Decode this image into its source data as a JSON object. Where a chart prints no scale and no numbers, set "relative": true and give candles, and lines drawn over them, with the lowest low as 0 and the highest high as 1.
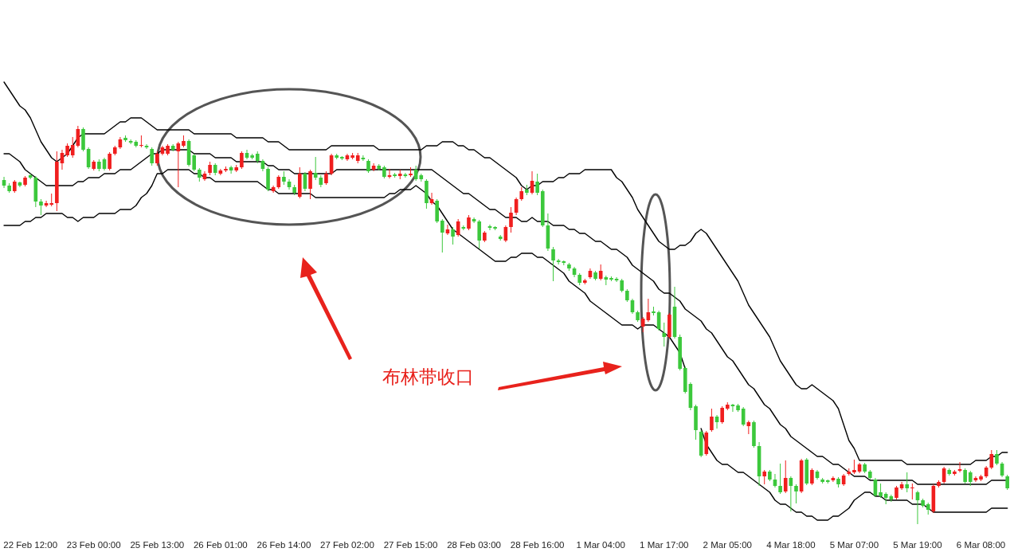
{
  "chart_data": {
    "type": "candlestick",
    "relative": true,
    "categories": [
      null,
      null,
      null,
      null,
      null,
      "22 Feb 12:00",
      null,
      null,
      null,
      null,
      null,
      null,
      null,
      null,
      null,
      null,
      null,
      "23 Feb 00:00",
      null,
      null,
      null,
      null,
      null,
      null,
      null,
      null,
      null,
      null,
      null,
      "25 Feb 13:00",
      null,
      null,
      null,
      null,
      null,
      null,
      null,
      null,
      null,
      null,
      null,
      "26 Feb 01:00",
      null,
      null,
      null,
      null,
      null,
      null,
      null,
      null,
      null,
      null,
      null,
      "26 Feb 14:00",
      null,
      null,
      null,
      null,
      null,
      null,
      null,
      null,
      null,
      null,
      null,
      "27 Feb 02:00",
      null,
      null,
      null,
      null,
      null,
      null,
      null,
      null,
      null,
      null,
      null,
      "27 Feb 15:00",
      null,
      null,
      null,
      null,
      null,
      null,
      null,
      null,
      null,
      null,
      null,
      "28 Feb 03:00",
      null,
      null,
      null,
      null,
      null,
      null,
      null,
      null,
      null,
      null,
      null,
      "28 Feb 16:00",
      null,
      null,
      null,
      null,
      null,
      null,
      null,
      null,
      null,
      null,
      null,
      "1 Mar 04:00",
      null,
      null,
      null,
      null,
      null,
      null,
      null,
      null,
      null,
      null,
      null,
      "1 Mar 17:00",
      null,
      null,
      null,
      null,
      null,
      null,
      null,
      null,
      null,
      null,
      null,
      "2 Mar 05:00",
      null,
      null,
      null,
      null,
      null,
      null,
      null,
      null,
      null,
      null,
      null,
      "4 Mar 18:00",
      null,
      null,
      null,
      null,
      null,
      null,
      null,
      null,
      null,
      null,
      null,
      "5 Mar 07:00",
      null,
      null,
      null,
      null,
      null,
      null,
      null,
      null,
      null,
      null,
      null,
      "5 Mar 19:00",
      null,
      null,
      null,
      null,
      null,
      null,
      null,
      null,
      null,
      null,
      null,
      "6 Mar 08:00",
      null,
      null,
      null,
      null,
      null
    ],
    "annotations": [
      "布林带收口"
    ],
    "ohlc": [
      [
        0.864,
        0.872,
        0.844,
        0.85
      ],
      [
        0.85,
        0.856,
        0.832,
        0.836
      ],
      [
        0.836,
        0.864,
        0.832,
        0.86
      ],
      [
        0.858,
        0.86,
        0.846,
        0.85
      ],
      [
        0.852,
        0.874,
        0.848,
        0.87
      ],
      [
        0.876,
        0.88,
        0.866,
        0.87
      ],
      [
        0.87,
        0.874,
        0.796,
        0.81
      ],
      [
        0.81,
        0.816,
        0.776,
        0.8
      ],
      [
        0.8,
        0.812,
        0.796,
        0.806
      ],
      [
        0.802,
        0.83,
        0.798,
        0.806
      ],
      [
        0.806,
        0.936,
        0.786,
        0.91
      ],
      [
        0.906,
        0.94,
        0.89,
        0.932
      ],
      [
        0.926,
        0.956,
        0.922,
        0.95
      ],
      [
        0.926,
        0.972,
        0.92,
        0.952
      ],
      [
        0.95,
        1.0,
        0.946,
        0.992
      ],
      [
        0.992,
        0.996,
        0.936,
        0.94
      ],
      [
        0.942,
        0.946,
        0.892,
        0.896
      ],
      [
        0.892,
        0.914,
        0.888,
        0.91
      ],
      [
        0.91,
        0.916,
        0.886,
        0.892
      ],
      [
        0.916,
        0.92,
        0.888,
        0.892
      ],
      [
        0.892,
        0.934,
        0.888,
        0.93
      ],
      [
        0.93,
        0.95,
        0.926,
        0.946
      ],
      [
        0.946,
        0.972,
        0.942,
        0.966
      ],
      [
        0.97,
        0.976,
        0.96,
        0.964
      ],
      [
        0.962,
        0.966,
        0.954,
        0.958
      ],
      [
        0.96,
        0.964,
        0.946,
        0.95
      ],
      [
        0.95,
        0.976,
        0.946,
        0.952
      ],
      [
        0.95,
        0.954,
        0.942,
        0.946
      ],
      [
        0.942,
        0.946,
        0.9,
        0.906
      ],
      [
        0.906,
        0.936,
        0.9,
        0.93
      ],
      [
        0.93,
        0.95,
        0.926,
        0.946
      ],
      [
        0.93,
        0.954,
        0.926,
        0.95
      ],
      [
        0.95,
        0.954,
        0.936,
        0.94
      ],
      [
        0.936,
        0.96,
        0.846,
        0.956
      ],
      [
        0.95,
        0.976,
        0.946,
        0.962
      ],
      [
        0.962,
        0.966,
        0.898,
        0.902
      ],
      [
        0.926,
        0.93,
        0.886,
        0.89
      ],
      [
        0.89,
        0.894,
        0.86,
        0.87
      ],
      [
        0.866,
        0.886,
        0.862,
        0.88
      ],
      [
        0.882,
        0.91,
        0.876,
        0.902
      ],
      [
        0.902,
        0.906,
        0.876,
        0.882
      ],
      [
        0.88,
        0.892,
        0.876,
        0.888
      ],
      [
        0.888,
        0.898,
        0.884,
        0.892
      ],
      [
        0.896,
        0.9,
        0.88,
        0.888
      ],
      [
        0.888,
        0.902,
        0.884,
        0.896
      ],
      [
        0.896,
        0.936,
        0.892,
        0.932
      ],
      [
        0.932,
        0.94,
        0.916,
        0.92
      ],
      [
        0.926,
        0.93,
        0.916,
        0.92
      ],
      [
        0.93,
        0.936,
        0.906,
        0.912
      ],
      [
        0.912,
        0.916,
        0.886,
        0.892
      ],
      [
        0.892,
        0.896,
        0.836,
        0.84
      ],
      [
        0.836,
        0.85,
        0.832,
        0.846
      ],
      [
        0.846,
        0.876,
        0.842,
        0.872
      ],
      [
        0.872,
        0.886,
        0.852,
        0.86
      ],
      [
        0.86,
        0.866,
        0.84,
        0.846
      ],
      [
        0.846,
        0.852,
        0.826,
        0.832
      ],
      [
        0.822,
        0.896,
        0.818,
        0.88
      ],
      [
        0.88,
        0.884,
        0.836,
        0.842
      ],
      [
        0.842,
        0.89,
        0.816,
        0.886
      ],
      [
        0.882,
        0.922,
        0.864,
        0.87
      ],
      [
        0.87,
        0.876,
        0.846,
        0.852
      ],
      [
        0.856,
        0.886,
        0.852,
        0.88
      ],
      [
        0.88,
        0.93,
        0.876,
        0.926
      ],
      [
        0.926,
        0.93,
        0.916,
        0.92
      ],
      [
        0.922,
        0.924,
        0.914,
        0.918
      ],
      [
        0.916,
        0.93,
        0.912,
        0.926
      ],
      [
        0.92,
        0.932,
        0.916,
        0.926
      ],
      [
        0.912,
        0.932,
        0.906,
        0.926
      ],
      [
        0.92,
        0.926,
        0.912,
        0.916
      ],
      [
        0.912,
        0.916,
        0.882,
        0.886
      ],
      [
        0.89,
        0.906,
        0.886,
        0.9
      ],
      [
        0.9,
        0.904,
        0.888,
        0.892
      ],
      [
        0.896,
        0.9,
        0.868,
        0.872
      ],
      [
        0.872,
        0.892,
        0.868,
        0.876
      ],
      [
        0.878,
        0.882,
        0.87,
        0.874
      ],
      [
        0.874,
        0.89,
        0.866,
        0.88
      ],
      [
        0.878,
        0.882,
        0.87,
        0.874
      ],
      [
        0.876,
        0.896,
        0.872,
        0.88
      ],
      [
        0.89,
        0.9,
        0.862,
        0.866
      ],
      [
        0.876,
        0.88,
        0.86,
        0.866
      ],
      [
        0.862,
        0.866,
        0.792,
        0.806
      ],
      [
        0.806,
        0.832,
        0.802,
        0.816
      ],
      [
        0.812,
        0.816,
        0.756,
        0.76
      ],
      [
        0.762,
        0.766,
        0.682,
        0.732
      ],
      [
        0.73,
        0.752,
        0.726,
        0.74
      ],
      [
        0.74,
        0.746,
        0.702,
        0.722
      ],
      [
        0.726,
        0.766,
        0.722,
        0.76
      ],
      [
        0.746,
        0.75,
        0.738,
        0.742
      ],
      [
        0.742,
        0.776,
        0.738,
        0.77
      ],
      [
        0.766,
        0.77,
        0.756,
        0.76
      ],
      [
        0.76,
        0.764,
        0.692,
        0.712
      ],
      [
        0.712,
        0.736,
        0.708,
        0.732
      ],
      [
        0.748,
        0.752,
        0.738,
        0.744
      ],
      [
        0.746,
        0.748,
        0.738,
        0.742
      ],
      [
        0.722,
        0.726,
        0.712,
        0.716
      ],
      [
        0.712,
        0.75,
        0.708,
        0.746
      ],
      [
        0.746,
        0.796,
        0.732,
        0.782
      ],
      [
        0.782,
        0.82,
        0.776,
        0.816
      ],
      [
        0.816,
        0.846,
        0.812,
        0.836
      ],
      [
        0.84,
        0.852,
        0.826,
        0.832
      ],
      [
        0.832,
        0.886,
        0.828,
        0.862
      ],
      [
        0.86,
        0.88,
        0.826,
        0.832
      ],
      [
        0.836,
        0.84,
        0.746,
        0.75
      ],
      [
        0.75,
        0.78,
        0.686,
        0.692
      ],
      [
        0.69,
        0.696,
        0.61,
        0.662
      ],
      [
        0.662,
        0.666,
        0.652,
        0.658
      ],
      [
        0.66,
        0.662,
        0.65,
        0.656
      ],
      [
        0.652,
        0.656,
        0.636,
        0.642
      ],
      [
        0.642,
        0.646,
        0.62,
        0.626
      ],
      [
        0.626,
        0.63,
        0.6,
        0.606
      ],
      [
        0.606,
        0.616,
        0.602,
        0.612
      ],
      [
        0.62,
        0.642,
        0.616,
        0.636
      ],
      [
        0.632,
        0.636,
        0.612,
        0.616
      ],
      [
        0.616,
        0.652,
        0.612,
        0.636
      ],
      [
        0.62,
        0.624,
        0.6,
        0.614
      ],
      [
        0.618,
        0.622,
        0.61,
        0.614
      ],
      [
        0.616,
        0.62,
        0.608,
        0.612
      ],
      [
        0.612,
        0.616,
        0.582,
        0.586
      ],
      [
        0.586,
        0.59,
        0.558,
        0.562
      ],
      [
        0.562,
        0.566,
        0.528,
        0.532
      ],
      [
        0.532,
        0.536,
        0.508,
        0.512
      ],
      [
        0.496,
        0.52,
        0.482,
        0.516
      ],
      [
        0.512,
        0.566,
        0.508,
        0.532
      ],
      [
        0.534,
        0.546,
        0.524,
        0.53
      ],
      [
        0.532,
        0.536,
        0.486,
        0.49
      ],
      [
        0.48,
        0.506,
        0.446,
        0.47
      ],
      [
        0.47,
        0.53,
        0.466,
        0.526
      ],
      [
        0.546,
        0.596,
        0.466,
        0.47
      ],
      [
        0.47,
        0.476,
        0.386,
        0.39
      ],
      [
        0.392,
        0.396,
        0.328,
        0.332
      ],
      [
        0.352,
        0.356,
        0.286,
        0.292
      ],
      [
        0.296,
        0.3,
        0.212,
        0.236
      ],
      [
        0.232,
        0.236,
        0.168,
        0.172
      ],
      [
        0.176,
        0.234,
        0.172,
        0.23
      ],
      [
        0.236,
        0.29,
        0.232,
        0.27
      ],
      [
        0.27,
        0.274,
        0.24,
        0.256
      ],
      [
        0.256,
        0.296,
        0.252,
        0.292
      ],
      [
        0.29,
        0.306,
        0.286,
        0.3
      ],
      [
        0.3,
        0.302,
        0.282,
        0.296
      ],
      [
        0.298,
        0.302,
        0.282,
        0.286
      ],
      [
        0.29,
        0.294,
        0.246,
        0.25
      ],
      [
        0.246,
        0.26,
        0.226,
        0.256
      ],
      [
        0.256,
        0.26,
        0.192,
        0.196
      ],
      [
        0.196,
        0.206,
        0.096,
        0.12
      ],
      [
        0.12,
        0.136,
        0.1,
        0.132
      ],
      [
        0.132,
        0.136,
        0.108,
        0.112
      ],
      [
        0.112,
        0.126,
        0.092,
        0.096
      ],
      [
        0.096,
        0.152,
        0.076,
        0.08
      ],
      [
        0.082,
        0.16,
        0.078,
        0.116
      ],
      [
        0.116,
        0.12,
        0.032,
        0.096
      ],
      [
        0.096,
        0.1,
        0.052,
        0.082
      ],
      [
        0.082,
        0.164,
        0.078,
        0.16
      ],
      [
        0.162,
        0.166,
        0.098,
        0.102
      ],
      [
        0.102,
        0.14,
        0.098,
        0.136
      ],
      [
        0.132,
        0.136,
        0.112,
        0.116
      ],
      [
        0.112,
        0.116,
        0.102,
        0.106
      ],
      [
        0.11,
        0.112,
        0.102,
        0.106
      ],
      [
        0.11,
        0.12,
        0.106,
        0.116
      ],
      [
        0.114,
        0.118,
        0.092,
        0.1
      ],
      [
        0.1,
        0.126,
        0.096,
        0.122
      ],
      [
        0.126,
        0.14,
        0.122,
        0.132
      ],
      [
        0.13,
        0.162,
        0.126,
        0.136
      ],
      [
        0.132,
        0.154,
        0.128,
        0.15
      ],
      [
        0.15,
        0.154,
        0.128,
        0.132
      ],
      [
        0.132,
        0.136,
        0.112,
        0.116
      ],
      [
        0.112,
        0.116,
        0.068,
        0.072
      ],
      [
        0.08,
        0.102,
        0.066,
        0.07
      ],
      [
        0.076,
        0.08,
        0.05,
        0.066
      ],
      [
        0.07,
        0.074,
        0.056,
        0.062
      ],
      [
        0.066,
        0.096,
        0.062,
        0.092
      ],
      [
        0.09,
        0.106,
        0.086,
        0.1
      ],
      [
        0.1,
        0.13,
        0.08,
        0.09
      ],
      [
        0.09,
        0.102,
        0.062,
        0.092
      ],
      [
        0.08,
        0.084,
        0,
        0.06
      ],
      [
        0.06,
        0.064,
        0.042,
        0.046
      ],
      [
        0.05,
        0.054,
        0.024,
        0.036
      ],
      [
        0.032,
        0.1,
        0.028,
        0.096
      ],
      [
        0.096,
        0.11,
        0.092,
        0.106
      ],
      [
        0.106,
        0.144,
        0.102,
        0.14
      ],
      [
        0.136,
        0.14,
        0.122,
        0.126
      ],
      [
        0.126,
        0.136,
        0.122,
        0.132
      ],
      [
        0.134,
        0.156,
        0.13,
        0.138
      ],
      [
        0.136,
        0.14,
        0.102,
        0.106
      ],
      [
        0.13,
        0.134,
        0.096,
        0.106
      ],
      [
        0.11,
        0.12,
        0.106,
        0.116
      ],
      [
        0.112,
        0.124,
        0.108,
        0.12
      ],
      [
        0.12,
        0.146,
        0.116,
        0.142
      ],
      [
        0.142,
        0.186,
        0.138,
        0.176
      ],
      [
        0.176,
        0.186,
        0.148,
        0.152
      ],
      [
        0.152,
        0.156,
        0.118,
        0.122
      ],
      [
        0.12,
        0.124,
        0.086,
        0.09
      ]
    ],
    "colors": [
      "#3cc83c",
      "#3cc83c",
      "#f01e1e",
      "#3cc83c",
      "#f01e1e",
      "#3cc83c",
      "#3cc83c",
      "#3cc83c",
      "#f01e1e",
      "#f01e1e",
      "#f01e1e",
      "#f01e1e",
      "#f01e1e",
      "#f01e1e",
      "#f01e1e",
      "#3cc83c",
      "#3cc83c",
      "#f01e1e",
      "#3cc83c",
      "#3cc83c",
      "#f01e1e",
      "#f01e1e",
      "#f01e1e",
      "#3cc83c",
      "#3cc83c",
      "#3cc83c",
      "#f01e1e",
      "#3cc83c",
      "#3cc83c",
      "#f01e1e",
      "#f01e1e",
      "#f01e1e",
      "#3cc83c",
      "#f01e1e",
      "#f01e1e",
      "#3cc83c",
      "#3cc83c",
      "#3cc83c",
      "#f01e1e",
      "#f01e1e",
      "#3cc83c",
      "#f01e1e",
      "#f01e1e",
      "#3cc83c",
      "#f01e1e",
      "#f01e1e",
      "#3cc83c",
      "#3cc83c",
      "#3cc83c",
      "#3cc83c",
      "#3cc83c",
      "#f01e1e",
      "#f01e1e",
      "#3cc83c",
      "#3cc83c",
      "#3cc83c",
      "#f01e1e",
      "#3cc83c",
      "#f01e1e",
      "#3cc83c",
      "#3cc83c",
      "#f01e1e",
      "#f01e1e",
      "#3cc83c",
      "#3cc83c",
      "#f01e1e",
      "#f01e1e",
      "#f01e1e",
      "#3cc83c",
      "#3cc83c",
      "#f01e1e",
      "#3cc83c",
      "#3cc83c",
      "#f01e1e",
      "#3cc83c",
      "#f01e1e",
      "#3cc83c",
      "#f01e1e",
      "#3cc83c",
      "#3cc83c",
      "#3cc83c",
      "#f01e1e",
      "#3cc83c",
      "#3cc83c",
      "#f01e1e",
      "#3cc83c",
      "#f01e1e",
      "#3cc83c",
      "#f01e1e",
      "#3cc83c",
      "#3cc83c",
      "#f01e1e",
      "#3cc83c",
      "#3cc83c",
      "#3cc83c",
      "#f01e1e",
      "#f01e1e",
      "#f01e1e",
      "#f01e1e",
      "#3cc83c",
      "#f01e1e",
      "#3cc83c",
      "#3cc83c",
      "#3cc83c",
      "#3cc83c",
      "#3cc83c",
      "#3cc83c",
      "#3cc83c",
      "#3cc83c",
      "#3cc83c",
      "#f01e1e",
      "#f01e1e",
      "#3cc83c",
      "#f01e1e",
      "#3cc83c",
      "#3cc83c",
      "#3cc83c",
      "#3cc83c",
      "#3cc83c",
      "#3cc83c",
      "#3cc83c",
      "#f01e1e",
      "#f01e1e",
      "#3cc83c",
      "#3cc83c",
      "#3cc83c",
      "#f01e1e",
      "#3cc83c",
      "#3cc83c",
      "#3cc83c",
      "#3cc83c",
      "#3cc83c",
      "#3cc83c",
      "#f01e1e",
      "#f01e1e",
      "#3cc83c",
      "#f01e1e",
      "#f01e1e",
      "#3cc83c",
      "#3cc83c",
      "#3cc83c",
      "#f01e1e",
      "#3cc83c",
      "#3cc83c",
      "#f01e1e",
      "#3cc83c",
      "#3cc83c",
      "#3cc83c",
      "#f01e1e",
      "#3cc83c",
      "#3cc83c",
      "#f01e1e",
      "#3cc83c",
      "#f01e1e",
      "#3cc83c",
      "#3cc83c",
      "#3cc83c",
      "#f01e1e",
      "#3cc83c",
      "#f01e1e",
      "#f01e1e",
      "#f01e1e",
      "#f01e1e",
      "#3cc83c",
      "#3cc83c",
      "#3cc83c",
      "#3cc83c",
      "#3cc83c",
      "#3cc83c",
      "#f01e1e",
      "#f01e1e",
      "#3cc83c",
      "#f01e1e",
      "#3cc83c",
      "#3cc83c",
      "#3cc83c",
      "#f01e1e",
      "#f01e1e",
      "#f01e1e",
      "#3cc83c",
      "#f01e1e",
      "#f01e1e",
      "#3cc83c",
      "#3cc83c",
      "#f01e1e",
      "#f01e1e",
      "#f01e1e",
      "#f01e1e",
      "#3cc83c",
      "#3cc83c",
      "#3cc83c"
    ],
    "series": [
      {
        "type": "line",
        "color": "#000000",
        "values": [
          1.11,
          1.09,
          1.07,
          1.05,
          1.04,
          1.02,
          0.99,
          0.96,
          0.94,
          0.92,
          0.91,
          0.92,
          0.93,
          0.95,
          0.97,
          0.98,
          0.98,
          0.98,
          0.98,
          0.98,
          0.99,
          1.0,
          1.01,
          1.01,
          1.02,
          1.02,
          1.02,
          1.01,
          1.0,
          0.99,
          0.99,
          0.99,
          0.99,
          0.99,
          0.99,
          0.99,
          0.98,
          0.98,
          0.98,
          0.98,
          0.98,
          0.98,
          0.98,
          0.98,
          0.97,
          0.97,
          0.97,
          0.97,
          0.97,
          0.97,
          0.96,
          0.96,
          0.96,
          0.95,
          0.94,
          0.94,
          0.94,
          0.94,
          0.94,
          0.94,
          0.94,
          0.94,
          0.95,
          0.95,
          0.95,
          0.95,
          0.95,
          0.95,
          0.95,
          0.95,
          0.95,
          0.94,
          0.94,
          0.94,
          0.94,
          0.94,
          0.94,
          0.94,
          0.94,
          0.94,
          0.95,
          0.95,
          0.95,
          0.96,
          0.96,
          0.96,
          0.95,
          0.95,
          0.94,
          0.94,
          0.93,
          0.92,
          0.92,
          0.91,
          0.9,
          0.89,
          0.88,
          0.87,
          0.85,
          0.84,
          0.85,
          0.85,
          0.86,
          0.86,
          0.86,
          0.87,
          0.87,
          0.88,
          0.88,
          0.88,
          0.89,
          0.89,
          0.89,
          0.89,
          0.89,
          0.89,
          0.87,
          0.86,
          0.84,
          0.82,
          0.79,
          0.77,
          0.75,
          0.73,
          0.71,
          0.7,
          0.69,
          0.69,
          0.7,
          0.7,
          0.71,
          0.73,
          0.74,
          0.73,
          0.71,
          0.69,
          0.67,
          0.65,
          0.63,
          0.61,
          0.58,
          0.55,
          0.53,
          0.51,
          0.49,
          0.47,
          0.44,
          0.41,
          0.39,
          0.37,
          0.35,
          0.34,
          0.34,
          0.35,
          0.34,
          0.33,
          0.32,
          0.31,
          0.29,
          0.25,
          0.21,
          0.19,
          0.16,
          0.16,
          0.16,
          0.16,
          0.16,
          0.16,
          0.16,
          0.16,
          0.16,
          0.15,
          0.15,
          0.15,
          0.15,
          0.15,
          0.15,
          0.15,
          0.15,
          0.15,
          0.15,
          0.15,
          0.15,
          0.15,
          0.16,
          0.16,
          0.16,
          0.17,
          0.17,
          0.18,
          0.18
        ]
      },
      {
        "type": "line",
        "color": "#000000",
        "values": [
          0.93,
          0.93,
          0.92,
          0.91,
          0.89,
          0.88,
          0.87,
          0.86,
          0.85,
          0.85,
          0.85,
          0.85,
          0.85,
          0.85,
          0.86,
          0.86,
          0.87,
          0.87,
          0.87,
          0.88,
          0.88,
          0.88,
          0.89,
          0.89,
          0.89,
          0.9,
          0.91,
          0.92,
          0.93,
          0.93,
          0.94,
          0.94,
          0.94,
          0.94,
          0.94,
          0.94,
          0.93,
          0.93,
          0.93,
          0.93,
          0.92,
          0.92,
          0.92,
          0.92,
          0.91,
          0.91,
          0.91,
          0.91,
          0.91,
          0.91,
          0.9,
          0.9,
          0.89,
          0.89,
          0.89,
          0.88,
          0.88,
          0.88,
          0.88,
          0.88,
          0.88,
          0.88,
          0.88,
          0.89,
          0.89,
          0.89,
          0.89,
          0.89,
          0.89,
          0.89,
          0.89,
          0.89,
          0.89,
          0.89,
          0.89,
          0.89,
          0.89,
          0.89,
          0.89,
          0.89,
          0.89,
          0.89,
          0.88,
          0.87,
          0.86,
          0.85,
          0.84,
          0.83,
          0.83,
          0.82,
          0.81,
          0.8,
          0.79,
          0.79,
          0.78,
          0.77,
          0.77,
          0.77,
          0.76,
          0.76,
          0.77,
          0.76,
          0.76,
          0.76,
          0.75,
          0.75,
          0.75,
          0.74,
          0.74,
          0.73,
          0.73,
          0.72,
          0.71,
          0.71,
          0.7,
          0.69,
          0.69,
          0.68,
          0.67,
          0.65,
          0.64,
          0.63,
          0.62,
          0.61,
          0.59,
          0.58,
          0.58,
          0.57,
          0.56,
          0.54,
          0.53,
          0.52,
          0.51,
          0.49,
          0.48,
          0.46,
          0.44,
          0.42,
          0.41,
          0.39,
          0.37,
          0.35,
          0.34,
          0.32,
          0.3,
          0.29,
          0.27,
          0.25,
          0.24,
          0.22,
          0.21,
          0.2,
          0.19,
          0.18,
          0.17,
          0.17,
          0.16,
          0.15,
          0.15,
          0.14,
          0.13,
          0.12,
          0.12,
          0.12,
          0.11,
          0.11,
          0.11,
          0.11,
          0.11,
          0.11,
          0.11,
          0.11,
          0.11,
          0.1,
          0.1,
          0.1,
          0.1,
          0.1,
          0.1,
          0.1,
          0.1,
          0.1,
          0.1,
          0.1,
          0.1,
          0.1,
          0.1,
          0.11,
          0.11,
          0.11,
          0.11
        ]
      },
      {
        "type": "line",
        "color": "#000000",
        "values": [
          0.75,
          0.75,
          0.75,
          0.75,
          0.76,
          0.76,
          0.77,
          0.77,
          0.78,
          0.78,
          0.78,
          0.78,
          0.77,
          0.77,
          0.76,
          0.77,
          0.77,
          0.77,
          0.78,
          0.78,
          0.78,
          0.78,
          0.79,
          0.79,
          0.79,
          0.8,
          0.82,
          0.83,
          0.85,
          0.88,
          0.88,
          0.89,
          0.89,
          0.89,
          0.89,
          0.89,
          0.88,
          0.88,
          0.87,
          0.87,
          0.86,
          0.86,
          0.86,
          0.86,
          0.86,
          0.86,
          0.86,
          0.86,
          0.86,
          0.85,
          0.84,
          0.84,
          0.83,
          0.83,
          0.83,
          0.83,
          0.83,
          0.83,
          0.83,
          0.82,
          0.82,
          0.82,
          0.82,
          0.82,
          0.82,
          0.82,
          0.82,
          0.82,
          0.82,
          0.82,
          0.82,
          0.82,
          0.82,
          0.83,
          0.83,
          0.84,
          0.84,
          0.84,
          0.85,
          0.84,
          0.83,
          0.81,
          0.8,
          0.78,
          0.76,
          0.74,
          0.73,
          0.72,
          0.71,
          0.7,
          0.69,
          0.68,
          0.67,
          0.66,
          0.66,
          0.66,
          0.67,
          0.67,
          0.68,
          0.68,
          0.68,
          0.67,
          0.67,
          0.66,
          0.65,
          0.64,
          0.63,
          0.61,
          0.6,
          0.59,
          0.58,
          0.56,
          0.55,
          0.54,
          0.53,
          0.52,
          0.51,
          0.5,
          0.5,
          0.5,
          0.49,
          0.5,
          0.5,
          0.5,
          0.49,
          0.48,
          0.47,
          0.45,
          0.43,
          0.39,
          null,
          null,
          0.24,
          0.2,
          0.18,
          0.16,
          0.15,
          0.15,
          0.14,
          0.13,
          0.13,
          0.12,
          0.11,
          0.1,
          0.09,
          0.08,
          0.06,
          0.05,
          0.05,
          0.04,
          0.03,
          0.03,
          0.02,
          0.02,
          0.01,
          0.01,
          0.01,
          0.02,
          0.02,
          0.03,
          0.04,
          0.06,
          0.07,
          0.08,
          0.08,
          0.07,
          0.07,
          0.06,
          0.06,
          0.06,
          0.06,
          0.06,
          0.05,
          0.05,
          0.05,
          0.04,
          0.03,
          0.03,
          0.03,
          0.03,
          0.03,
          0.03,
          0.03,
          0.03,
          0.03,
          0.03,
          0.03,
          0.04,
          0.04,
          0.04,
          0.04
        ]
      }
    ]
  }
}
